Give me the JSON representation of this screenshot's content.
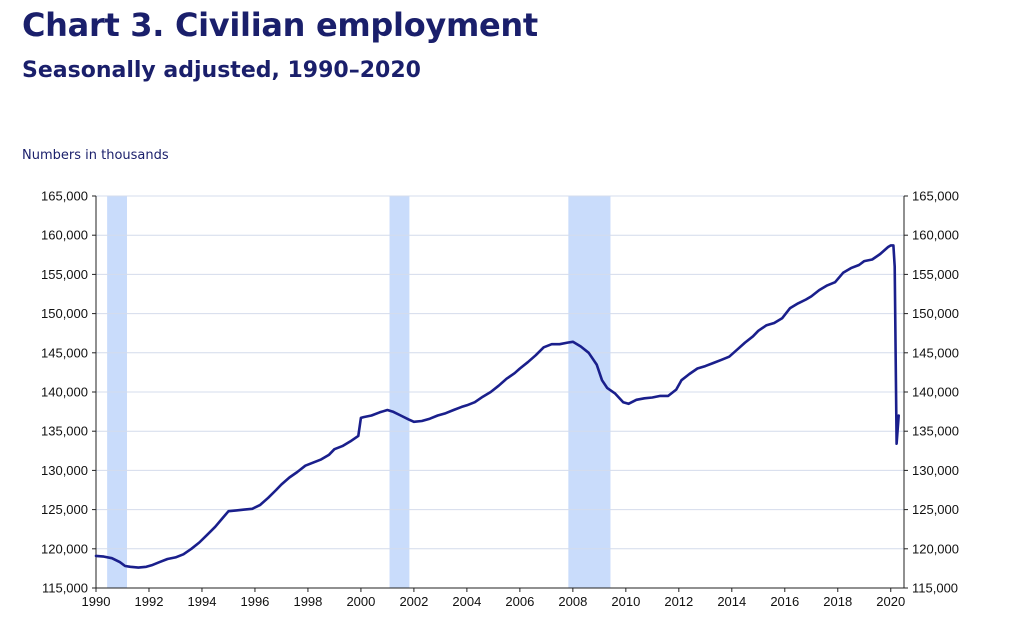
{
  "chart_data": {
    "type": "line",
    "title": "Chart 3. Civilian employment",
    "subtitle": "Seasonally adjusted, 1990–2020",
    "ylabel": "Numbers in thousands",
    "xlim": [
      1990,
      2020.5
    ],
    "ylim": [
      115000,
      165000
    ],
    "y_ticks": [
      115000,
      120000,
      125000,
      130000,
      135000,
      140000,
      145000,
      150000,
      155000,
      160000,
      165000
    ],
    "y_tick_labels": [
      "115,000",
      "120,000",
      "125,000",
      "130,000",
      "135,000",
      "140,000",
      "145,000",
      "150,000",
      "155,000",
      "160,000",
      "165,000"
    ],
    "x_ticks": [
      1990,
      1992,
      1994,
      1996,
      1998,
      2000,
      2002,
      2004,
      2006,
      2008,
      2010,
      2012,
      2014,
      2016,
      2018,
      2020
    ],
    "x_tick_labels": [
      "1990",
      "1992",
      "1994",
      "1996",
      "1998",
      "2000",
      "2002",
      "2004",
      "2006",
      "2008",
      "2010",
      "2012",
      "2014",
      "2016",
      "2018",
      "2020"
    ],
    "grid": true,
    "dual_y_axis": true,
    "line_color": "#1a1f8c",
    "recession_color": "#c9dcfb",
    "recessions": [
      {
        "start": 1990.42,
        "end": 1991.17
      },
      {
        "start": 2001.08,
        "end": 2001.83
      },
      {
        "start": 2007.83,
        "end": 2009.42
      }
    ],
    "series": [
      {
        "x": [
          1990.0,
          1990.3,
          1990.6,
          1990.9,
          1991.1,
          1991.3,
          1991.6,
          1991.9,
          1992.1,
          1992.4,
          1992.7,
          1993.0,
          1993.3,
          1993.6,
          1993.9,
          1994.2,
          1994.5,
          1994.8,
          1995.0,
          1995.3,
          1995.6,
          1995.9,
          1996.2,
          1996.5,
          1996.8,
          1997.0,
          1997.3,
          1997.6,
          1997.9,
          1998.2,
          1998.5,
          1998.8,
          1999.0,
          1999.3,
          1999.6,
          1999.9,
          2000.0,
          2000.1,
          2000.4,
          2000.7,
          2001.0,
          2001.2,
          2001.5,
          2001.8,
          2002.0,
          2002.3,
          2002.6,
          2002.9,
          2003.2,
          2003.5,
          2003.8,
          2004.0,
          2004.3,
          2004.6,
          2004.9,
          2005.2,
          2005.5,
          2005.8,
          2006.0,
          2006.3,
          2006.6,
          2006.9,
          2007.2,
          2007.5,
          2007.8,
          2008.0,
          2008.3,
          2008.6,
          2008.9,
          2009.1,
          2009.3,
          2009.6,
          2009.9,
          2010.1,
          2010.4,
          2010.7,
          2011.0,
          2011.3,
          2011.6,
          2011.9,
          2012.1,
          2012.4,
          2012.7,
          2013.0,
          2013.3,
          2013.6,
          2013.9,
          2014.2,
          2014.5,
          2014.8,
          2015.0,
          2015.3,
          2015.6,
          2015.9,
          2016.2,
          2016.5,
          2016.8,
          2017.0,
          2017.3,
          2017.6,
          2017.9,
          2018.2,
          2018.5,
          2018.8,
          2019.0,
          2019.3,
          2019.6,
          2019.9,
          2020.0,
          2020.1,
          2020.15,
          2020.22,
          2020.3
        ],
        "values": [
          119100,
          119000,
          118800,
          118300,
          117800,
          117700,
          117600,
          117700,
          117900,
          118300,
          118700,
          118900,
          119300,
          120000,
          120800,
          121800,
          122800,
          124000,
          124800,
          124900,
          125000,
          125100,
          125600,
          126500,
          127500,
          128200,
          129100,
          129800,
          130600,
          131000,
          131400,
          132000,
          132700,
          133100,
          133700,
          134400,
          136700,
          136800,
          137000,
          137400,
          137700,
          137500,
          137000,
          136500,
          136200,
          136300,
          136600,
          137000,
          137300,
          137700,
          138100,
          138300,
          138700,
          139400,
          140000,
          140800,
          141700,
          142400,
          143000,
          143800,
          144700,
          145700,
          146100,
          146100,
          146300,
          146400,
          145800,
          145000,
          143500,
          141500,
          140500,
          139800,
          138700,
          138500,
          139000,
          139200,
          139300,
          139500,
          139500,
          140300,
          141500,
          142300,
          143000,
          143300,
          143700,
          144100,
          144500,
          145400,
          146300,
          147100,
          147800,
          148500,
          148800,
          149400,
          150700,
          151300,
          151800,
          152200,
          153000,
          153600,
          154000,
          155200,
          155800,
          156200,
          156700,
          156900,
          157600,
          158500,
          158700,
          158700,
          156000,
          133400,
          137000
        ]
      }
    ]
  }
}
